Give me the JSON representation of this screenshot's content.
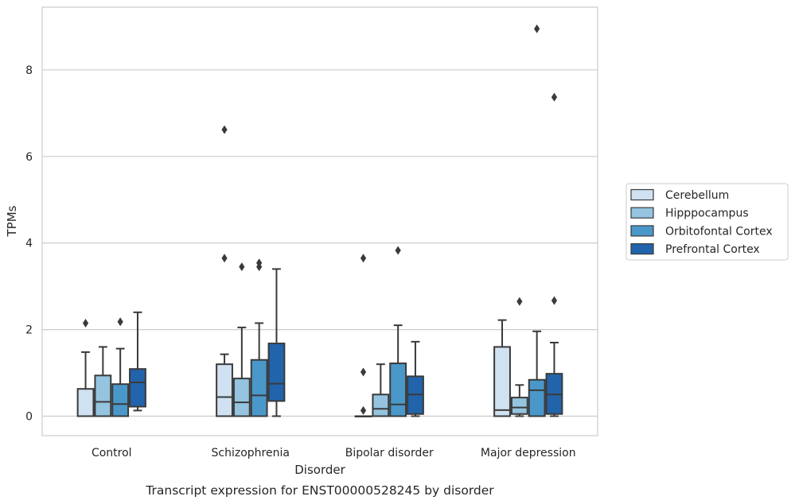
{
  "chart_data": {
    "type": "box",
    "caption": "Transcript expression for ENST00000528245 by disorder",
    "xlabel": "Disorder",
    "ylabel": "TPMs",
    "ylim": [
      -0.45,
      9.45
    ],
    "yticks": [
      0,
      2,
      4,
      6,
      8
    ],
    "grid": true,
    "legend_position": "right",
    "categories": [
      "Control",
      "Schizophrenia",
      "Bipolar disorder",
      "Major depression"
    ],
    "series": [
      {
        "name": "Cerebellum",
        "color": "#d0e1f2",
        "boxes": [
          {
            "whislo": 0,
            "q1": 0,
            "med": 0,
            "q3": 0.63,
            "whishi": 1.48,
            "fliers": [
              2.15
            ]
          },
          {
            "whislo": 0,
            "q1": 0,
            "med": 0.44,
            "q3": 1.2,
            "whishi": 1.43,
            "fliers": [
              3.65,
              6.62
            ]
          },
          {
            "whislo": 0,
            "q1": 0,
            "med": 0,
            "q3": 0,
            "whishi": 0,
            "fliers": [
              0.13,
              1.02,
              3.65
            ]
          },
          {
            "whislo": 0,
            "q1": 0,
            "med": 0.14,
            "q3": 1.6,
            "whishi": 2.22,
            "fliers": []
          }
        ]
      },
      {
        "name": "Hipppocampus",
        "color": "#94c4df",
        "boxes": [
          {
            "whislo": 0,
            "q1": 0,
            "med": 0.33,
            "q3": 0.94,
            "whishi": 1.6,
            "fliers": []
          },
          {
            "whislo": 0,
            "q1": 0,
            "med": 0.32,
            "q3": 0.87,
            "whishi": 2.05,
            "fliers": [
              3.45
            ]
          },
          {
            "whislo": 0,
            "q1": 0,
            "med": 0.17,
            "q3": 0.5,
            "whishi": 1.2,
            "fliers": []
          },
          {
            "whislo": 0,
            "q1": 0.05,
            "med": 0.2,
            "q3": 0.43,
            "whishi": 0.72,
            "fliers": [
              2.65
            ]
          }
        ]
      },
      {
        "name": "Orbitofontal Cortex",
        "color": "#4a98c9",
        "boxes": [
          {
            "whislo": 0,
            "q1": 0,
            "med": 0.28,
            "q3": 0.74,
            "whishi": 1.56,
            "fliers": [
              2.18
            ]
          },
          {
            "whislo": 0,
            "q1": 0,
            "med": 0.48,
            "q3": 1.3,
            "whishi": 2.15,
            "fliers": [
              3.45,
              3.54
            ]
          },
          {
            "whislo": 0,
            "q1": 0,
            "med": 0.27,
            "q3": 1.22,
            "whishi": 2.1,
            "fliers": [
              3.83
            ]
          },
          {
            "whislo": 0,
            "q1": 0,
            "med": 0.6,
            "q3": 0.84,
            "whishi": 1.96,
            "fliers": [
              8.95
            ]
          }
        ]
      },
      {
        "name": "Prefrontal Cortex",
        "color": "#2164ab",
        "boxes": [
          {
            "whislo": 0.13,
            "q1": 0.22,
            "med": 0.78,
            "q3": 1.09,
            "whishi": 2.4,
            "fliers": []
          },
          {
            "whislo": 0,
            "q1": 0.35,
            "med": 0.75,
            "q3": 1.68,
            "whishi": 3.4,
            "fliers": []
          },
          {
            "whislo": 0,
            "q1": 0.05,
            "med": 0.5,
            "q3": 0.92,
            "whishi": 1.72,
            "fliers": []
          },
          {
            "whislo": 0,
            "q1": 0.05,
            "med": 0.5,
            "q3": 0.98,
            "whishi": 1.7,
            "fliers": [
              2.67,
              7.37
            ]
          }
        ]
      }
    ]
  }
}
